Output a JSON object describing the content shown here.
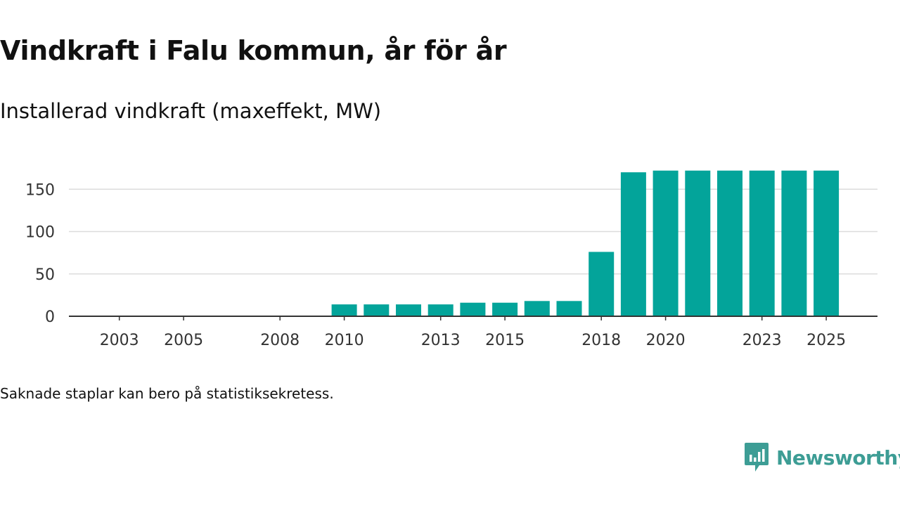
{
  "title": "Vindkraft i Falu kommun, år för år",
  "subtitle": "Installerad vindkraft (maxeffekt, MW)",
  "footnote": "Saknade staplar kan bero på statistiksekretess.",
  "brand": {
    "name": "Newsworthy",
    "color": "#3d9d95"
  },
  "colors": {
    "bar": "#03a49a",
    "grid": "#dcdcdc",
    "axis": "#333333",
    "tick_label": "#333333"
  },
  "chart_data": {
    "type": "bar",
    "title": "Vindkraft i Falu kommun, år för år",
    "subtitle": "Installerad vindkraft (maxeffekt, MW)",
    "xlabel": "",
    "ylabel": "",
    "categories": [
      2002,
      2003,
      2004,
      2005,
      2006,
      2007,
      2008,
      2009,
      2010,
      2011,
      2012,
      2013,
      2014,
      2015,
      2016,
      2017,
      2018,
      2019,
      2020,
      2021,
      2022,
      2023,
      2024,
      2025
    ],
    "values": [
      null,
      null,
      null,
      null,
      null,
      null,
      null,
      null,
      14,
      14,
      14,
      14,
      16,
      16,
      18,
      18,
      76,
      170,
      172,
      172,
      172,
      172,
      172,
      172
    ],
    "x_tick_labels": [
      "2003",
      "2005",
      "2008",
      "2010",
      "2013",
      "2015",
      "2018",
      "2020",
      "2023",
      "2025"
    ],
    "y_ticks": [
      0,
      50,
      100,
      150
    ],
    "ylim": [
      0,
      180
    ],
    "grid": true,
    "legend": false
  }
}
